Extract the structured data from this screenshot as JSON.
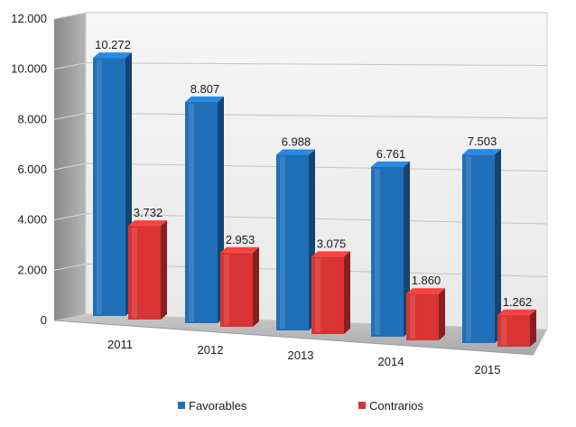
{
  "chart_data": {
    "type": "bar",
    "categories": [
      "2011",
      "2012",
      "2013",
      "2014",
      "2015"
    ],
    "series": [
      {
        "name": "Favorables",
        "values": [
          10272,
          8807,
          6988,
          6761,
          7503
        ],
        "labels": [
          "10.272",
          "8.807",
          "6.988",
          "6.761",
          "7.503"
        ],
        "color": "#1f6fb8"
      },
      {
        "name": "Contrarios",
        "values": [
          3732,
          2953,
          3075,
          1860,
          1262
        ],
        "labels": [
          "3.732",
          "2.953",
          "3.075",
          "1.860",
          "1.262"
        ],
        "color": "#d93333"
      }
    ],
    "y_ticks": [
      "0",
      "2.000",
      "4.000",
      "6.000",
      "8.000",
      "10.000",
      "12.000"
    ],
    "ylim": [
      0,
      12000
    ],
    "grid": true,
    "legend_position": "bottom",
    "style": "3d"
  }
}
